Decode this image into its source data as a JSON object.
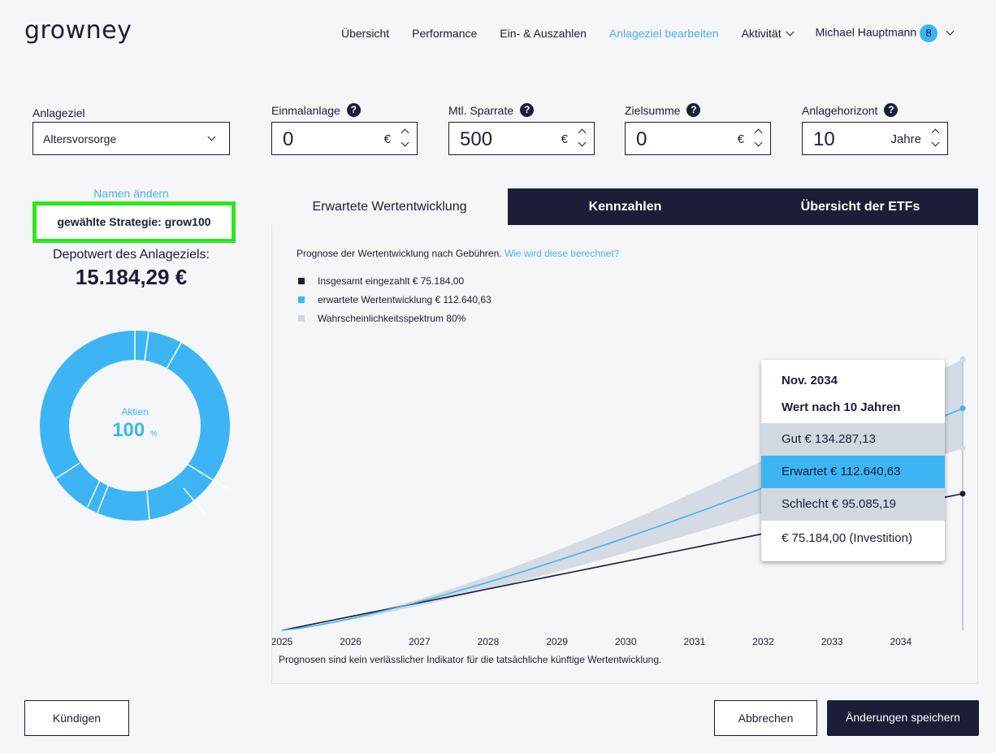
{
  "header": {
    "logo": "growney",
    "nav": [
      "Übersicht",
      "Performance",
      "Ein- & Auszahlen",
      "Anlageziel bearbeiten",
      "Aktivität"
    ],
    "user": "Michael Hauptmann",
    "notifications": "8"
  },
  "form": {
    "goal_label": "Anlageziel",
    "goal_value": "Altersvorsorge",
    "lump_label": "Einmalanlage",
    "lump_value": "0",
    "lump_unit": "€",
    "rate_label": "Mtl. Sparrate",
    "rate_value": "500",
    "rate_unit": "€",
    "target_label": "Zielsumme",
    "target_value": "0",
    "target_unit": "€",
    "horizon_label": "Anlagehorizont",
    "horizon_value": "10",
    "horizon_unit": "Jahre",
    "help": "?"
  },
  "left": {
    "rename": "Namen ändern",
    "strategy": "gewählte Strategie: grow100",
    "depot_label": "Depotwert des Anlageziels:",
    "depot_value": "15.184,29 €",
    "donut_category": "Aktien",
    "donut_pct": "100",
    "donut_pct_unit": "%",
    "donut_color": "#3db5f5"
  },
  "tabs": [
    "Erwartete Wertentwicklung",
    "Kennzahlen",
    "Übersicht der ETFs"
  ],
  "chart": {
    "subtitle": "Prognose der Wertentwicklung nach Gebühren.",
    "subtitle_link": "Wie wird diese berechnet?",
    "legend": [
      {
        "label": "Insgesamt eingezahlt € 75.184,00",
        "color": "#1b1e36"
      },
      {
        "label": "erwartete Wertentwicklung € 112.640,63",
        "color": "#3db5f5"
      },
      {
        "label": "Wahrscheinlichkeitsspektrum 80%",
        "color": "#d1d8e0"
      }
    ],
    "disclaimer": "Prognosen sind kein verlässlicher Indikator für die tatsächliche künftige Wertentwicklung."
  },
  "chart_data": {
    "type": "line",
    "x": [
      2025,
      2034.9
    ],
    "x_ticks": [
      "2025",
      "2026",
      "2027",
      "2028",
      "2029",
      "2030",
      "2031",
      "2032",
      "2033",
      "2034"
    ],
    "series": [
      {
        "name": "Insgesamt eingezahlt",
        "color": "#1b1e36",
        "start": 15184.29,
        "end": 75184.0
      },
      {
        "name": "erwartete Wertentwicklung",
        "color": "#3db5f5",
        "start": 15184.29,
        "end": 112640.63
      },
      {
        "name": "Wahrscheinlichkeitsspektrum 80%",
        "color": "#d1d8e0",
        "start": 15184.29,
        "upper_end": 134287.13,
        "lower_end": 95085.19
      }
    ],
    "tooltip": {
      "date": "Nov. 2034",
      "subtitle": "Wert nach 10 Jahren",
      "good": "Gut € 134.287,13",
      "expected": "Erwartet € 112.640,63",
      "bad": "Schlecht € 95.085,19",
      "invested": "€ 75.184,00 (Investition)"
    }
  },
  "buttons": {
    "cancel_contract": "Kündigen",
    "abort": "Abbrechen",
    "save": "Änderungen speichern"
  }
}
